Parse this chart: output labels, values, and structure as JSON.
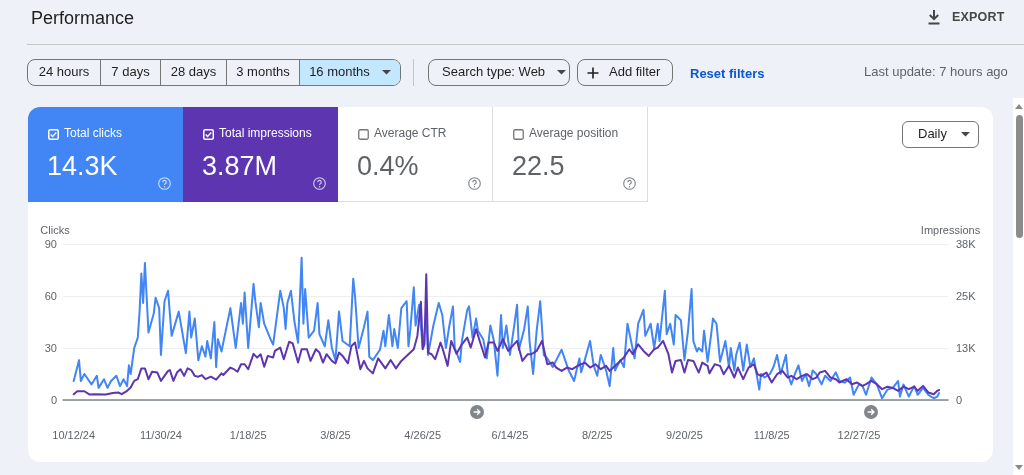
{
  "chart_data": [
    {
      "type": "other",
      "title": "Performance",
      "annotations": [
        "EXPORT",
        "24 hours",
        "7 days",
        "28 days",
        "3 months",
        "16 months",
        "Search type: Web",
        "Add filter",
        "Reset filters",
        "Last update: 7 hours ago",
        "Total clicks",
        "14.3K",
        "Total impressions",
        "3.87M",
        "Average CTR",
        "0.4%",
        "Average position",
        "22.5",
        "Daily"
      ]
    },
    {
      "type": "line",
      "ylabel": "Clicks",
      "y2label": "Impressions",
      "xlim": [
        "2024-10-06",
        "2026-02-15"
      ],
      "xticks": [
        {
          "value": "2024-10-12",
          "label": "10/12/24"
        },
        {
          "value": "2024-11-30",
          "label": "11/30/24"
        },
        {
          "value": "2025-01-18",
          "label": "1/18/25"
        },
        {
          "value": "2025-03-08",
          "label": "3/8/25"
        },
        {
          "value": "2025-04-26",
          "label": "4/26/25"
        },
        {
          "value": "2025-06-14",
          "label": "6/14/25"
        },
        {
          "value": "2025-08-02",
          "label": "8/2/25"
        },
        {
          "value": "2025-09-20",
          "label": "9/20/25"
        },
        {
          "value": "2025-11-08",
          "label": "11/8/25"
        },
        {
          "value": "2025-12-27",
          "label": "12/27/25"
        }
      ],
      "ylim": [
        0,
        90
      ],
      "yticks": [
        0,
        30,
        60,
        90
      ],
      "y2lim": [
        0,
        37500
      ],
      "y2ticks": [
        0,
        {
          "value": 12500,
          "label": "13K"
        },
        {
          "value": 25000,
          "label": "25K"
        },
        {
          "value": 37500,
          "label": "38K"
        }
      ],
      "grid": "y",
      "marker": "none",
      "series": [
        {
          "color": "#4285f4",
          "x": [
            "2024-10-12",
            "2024-10-15",
            "2024-10-16",
            "2024-10-18",
            "2024-10-22",
            "2024-10-25",
            "2024-10-26",
            "2024-10-29",
            "2024-10-31",
            "2024-11-02",
            "2024-11-05",
            "2024-11-07",
            "2024-11-09",
            "2024-11-11",
            "2024-11-12",
            "2024-11-13",
            "2024-11-15",
            "2024-11-17",
            "2024-11-18",
            "2024-11-19",
            "2024-11-20",
            "2024-11-21",
            "2024-11-23",
            "2024-11-26",
            "2024-11-27",
            "2024-11-29",
            "2024-11-30",
            "2024-12-02",
            "2024-12-04",
            "2024-12-06",
            "2024-12-10",
            "2024-12-14",
            "2024-12-16",
            "2024-12-17",
            "2024-12-19",
            "2024-12-21",
            "2024-12-23",
            "2024-12-25",
            "2024-12-26",
            "2024-12-28",
            "2024-12-30",
            "2024-12-31",
            "2025-01-01",
            "2025-01-03",
            "2025-01-08",
            "2025-01-11",
            "2025-01-14",
            "2025-01-15",
            "2025-01-16",
            "2025-01-18",
            "2025-01-21",
            "2025-01-22",
            "2025-01-24",
            "2025-01-25",
            "2025-01-27",
            "2025-01-31",
            "2025-02-01",
            "2025-02-05",
            "2025-02-07",
            "2025-02-08",
            "2025-02-09",
            "2025-02-11",
            "2025-02-13",
            "2025-02-15",
            "2025-02-17",
            "2025-02-18",
            "2025-02-19",
            "2025-02-21",
            "2025-02-24",
            "2025-02-26",
            "2025-02-27",
            "2025-03-02",
            "2025-03-04",
            "2025-03-06",
            "2025-03-08",
            "2025-03-10",
            "2025-03-12",
            "2025-03-16",
            "2025-03-18",
            "2025-03-19",
            "2025-03-21",
            "2025-03-24",
            "2025-03-26",
            "2025-03-27",
            "2025-03-29",
            "2025-04-02",
            "2025-04-04",
            "2025-04-05",
            "2025-04-07",
            "2025-04-09",
            "2025-04-10",
            "2025-04-12",
            "2025-04-14",
            "2025-04-17",
            "2025-04-18",
            "2025-04-19",
            "2025-04-21",
            "2025-04-22",
            "2025-04-24",
            "2025-04-26",
            "2025-04-28",
            "2025-04-29",
            "2025-05-02",
            "2025-05-05",
            "2025-05-07",
            "2025-05-09",
            "2025-05-11",
            "2025-05-13",
            "2025-05-14",
            "2025-05-17",
            "2025-05-18",
            "2025-05-21",
            "2025-05-22",
            "2025-05-24",
            "2025-05-26",
            "2025-05-27",
            "2025-05-30",
            "2025-06-01",
            "2025-06-03",
            "2025-06-05",
            "2025-06-07",
            "2025-06-09",
            "2025-06-10",
            "2025-06-12",
            "2025-06-14",
            "2025-06-16",
            "2025-06-18",
            "2025-06-19",
            "2025-06-22",
            "2025-06-24",
            "2025-06-25",
            "2025-06-27",
            "2025-06-29",
            "2025-07-01",
            "2025-07-03",
            "2025-07-05",
            "2025-07-08",
            "2025-07-10",
            "2025-07-13",
            "2025-07-15",
            "2025-07-17",
            "2025-07-20",
            "2025-07-23",
            "2025-07-24",
            "2025-07-26",
            "2025-07-29",
            "2025-07-31",
            "2025-08-02",
            "2025-08-04",
            "2025-08-07",
            "2025-08-09",
            "2025-08-11",
            "2025-08-12",
            "2025-08-15",
            "2025-08-17",
            "2025-08-19",
            "2025-08-21",
            "2025-08-23",
            "2025-08-25",
            "2025-08-28",
            "2025-08-29",
            "2025-09-01",
            "2025-09-03",
            "2025-09-05",
            "2025-09-06",
            "2025-09-09",
            "2025-09-10",
            "2025-09-12",
            "2025-09-14",
            "2025-09-15",
            "2025-09-18",
            "2025-09-20",
            "2025-09-22",
            "2025-09-24",
            "2025-09-25",
            "2025-09-27",
            "2025-09-28",
            "2025-09-30",
            "2025-10-01",
            "2025-10-03",
            "2025-10-05",
            "2025-10-06",
            "2025-10-08",
            "2025-10-10",
            "2025-10-13",
            "2025-10-15",
            "2025-10-16",
            "2025-10-18",
            "2025-10-19",
            "2025-10-21",
            "2025-10-23",
            "2025-10-25",
            "2025-10-27",
            "2025-10-29",
            "2025-11-01",
            "2025-11-02",
            "2025-11-04",
            "2025-11-07",
            "2025-11-09",
            "2025-11-11",
            "2025-11-13",
            "2025-11-16",
            "2025-11-17",
            "2025-11-19",
            "2025-11-21",
            "2025-11-23",
            "2025-11-25",
            "2025-11-27",
            "2025-11-29",
            "2025-12-01",
            "2025-12-03",
            "2025-12-06",
            "2025-12-08",
            "2025-12-11",
            "2025-12-14",
            "2025-12-16",
            "2025-12-19",
            "2025-12-22",
            "2025-12-24",
            "2025-12-27",
            "2025-12-29",
            "2025-12-31",
            "2026-01-03",
            "2026-01-06",
            "2026-01-09",
            "2026-01-12",
            "2026-01-15",
            "2026-01-18",
            "2026-01-19",
            "2026-01-21",
            "2026-01-24",
            "2026-01-27",
            "2026-01-29",
            "2026-02-01",
            "2026-02-04",
            "2026-02-07",
            "2026-02-09",
            "2026-02-10"
          ],
          "values": [
            11,
            23,
            11,
            15,
            9,
            14,
            7,
            12,
            7,
            11,
            14,
            8,
            12,
            8,
            20,
            15,
            30,
            36,
            51,
            73,
            56,
            79,
            39,
            50,
            59,
            53,
            26,
            57,
            63,
            37,
            51,
            27,
            51,
            36,
            47,
            23,
            31,
            25,
            34,
            24,
            45,
            19,
            35,
            28,
            53,
            30,
            56,
            44,
            62,
            30,
            67,
            57,
            42,
            56,
            44,
            34,
            32,
            63,
            53,
            41,
            56,
            63,
            45,
            33,
            82,
            44,
            64,
            36,
            40,
            56,
            38,
            31,
            46,
            30,
            23,
            51,
            34,
            31,
            70,
            60,
            30,
            42,
            51,
            25,
            23,
            29,
            40,
            31,
            49,
            31,
            41,
            30,
            53,
            57,
            31,
            40,
            65,
            43,
            55,
            30,
            49,
            26,
            43,
            56,
            49,
            30,
            43,
            54,
            30,
            22,
            34,
            52,
            54,
            36,
            47,
            40,
            35,
            24,
            43,
            34,
            14,
            49,
            30,
            43,
            26,
            40,
            55,
            29,
            41,
            54,
            34,
            15,
            40,
            57,
            26,
            24,
            19,
            23,
            29,
            23,
            17,
            11,
            24,
            16,
            23,
            34,
            20,
            14,
            26,
            17,
            8,
            30,
            17,
            23,
            19,
            44,
            34,
            24,
            44,
            52,
            37,
            44,
            30,
            44,
            34,
            63,
            38,
            44,
            32,
            49,
            46,
            23,
            40,
            64,
            34,
            28,
            30,
            28,
            40,
            22,
            38,
            47,
            44,
            22,
            34,
            19,
            30,
            17,
            26,
            33,
            17,
            32,
            19,
            24,
            6,
            15,
            13,
            15,
            19,
            26,
            15,
            26,
            15,
            9,
            15,
            20,
            11,
            15,
            8,
            17,
            15,
            9,
            14,
            11,
            16,
            11,
            10,
            13,
            3,
            9,
            8,
            3,
            13,
            9,
            1,
            6,
            7,
            11,
            2,
            9,
            2,
            8,
            3,
            7,
            3,
            1,
            2,
            4
          ]
        },
        {
          "color": "#5e35b1",
          "axis": "y2",
          "x": [
            "2024-10-12",
            "2024-10-14",
            "2024-10-18",
            "2024-10-21",
            "2024-10-24",
            "2024-10-30",
            "2024-11-03",
            "2024-11-06",
            "2024-11-08",
            "2024-11-11",
            "2024-11-13",
            "2024-11-15",
            "2024-11-17",
            "2024-11-19",
            "2024-11-21",
            "2024-11-23",
            "2024-11-25",
            "2024-11-28",
            "2024-11-30",
            "2024-12-04",
            "2024-12-05",
            "2024-12-07",
            "2024-12-09",
            "2024-12-11",
            "2024-12-13",
            "2024-12-15",
            "2024-12-17",
            "2024-12-19",
            "2024-12-21",
            "2024-12-23",
            "2024-12-25",
            "2024-12-28",
            "2024-12-31",
            "2025-01-03",
            "2025-01-04",
            "2025-01-08",
            "2025-01-10",
            "2025-01-12",
            "2025-01-14",
            "2025-01-16",
            "2025-01-18",
            "2025-01-21",
            "2025-01-23",
            "2025-01-25",
            "2025-01-27",
            "2025-01-29",
            "2025-02-01",
            "2025-02-02",
            "2025-02-05",
            "2025-02-07",
            "2025-02-10",
            "2025-02-12",
            "2025-02-15",
            "2025-02-17",
            "2025-02-20",
            "2025-02-22",
            "2025-02-25",
            "2025-02-27",
            "2025-03-01",
            "2025-03-03",
            "2025-03-06",
            "2025-03-08",
            "2025-03-10",
            "2025-03-12",
            "2025-03-15",
            "2025-03-17",
            "2025-03-19",
            "2025-03-22",
            "2025-03-24",
            "2025-03-26",
            "2025-03-29",
            "2025-04-01",
            "2025-04-05",
            "2025-04-08",
            "2025-04-11",
            "2025-04-14",
            "2025-04-18",
            "2025-04-21",
            "2025-04-23",
            "2025-04-25",
            "2025-04-26",
            "2025-04-27",
            "2025-04-28",
            "2025-04-29",
            "2025-05-01",
            "2025-05-03",
            "2025-05-06",
            "2025-05-07",
            "2025-05-10",
            "2025-05-12",
            "2025-05-15",
            "2025-05-18",
            "2025-05-21",
            "2025-05-23",
            "2025-05-26",
            "2025-05-28",
            "2025-05-31",
            "2025-06-02",
            "2025-06-05",
            "2025-06-07",
            "2025-06-10",
            "2025-06-13",
            "2025-06-18",
            "2025-06-21",
            "2025-06-24",
            "2025-06-26",
            "2025-06-29",
            "2025-07-02",
            "2025-07-05",
            "2025-07-08",
            "2025-07-10",
            "2025-07-13",
            "2025-07-16",
            "2025-07-19",
            "2025-07-22",
            "2025-07-26",
            "2025-07-29",
            "2025-08-01",
            "2025-08-04",
            "2025-08-07",
            "2025-08-09",
            "2025-08-13",
            "2025-08-17",
            "2025-08-20",
            "2025-08-22",
            "2025-08-25",
            "2025-08-28",
            "2025-08-31",
            "2025-09-03",
            "2025-09-05",
            "2025-09-08",
            "2025-09-11",
            "2025-09-13",
            "2025-09-15",
            "2025-09-18",
            "2025-09-20",
            "2025-09-22",
            "2025-09-25",
            "2025-09-28",
            "2025-09-30",
            "2025-10-03",
            "2025-10-04",
            "2025-10-07",
            "2025-10-10",
            "2025-10-12",
            "2025-10-15",
            "2025-10-18",
            "2025-10-20",
            "2025-10-23",
            "2025-10-26",
            "2025-10-29",
            "2025-10-31",
            "2025-11-02",
            "2025-11-05",
            "2025-11-08",
            "2025-11-11",
            "2025-11-14",
            "2025-11-17",
            "2025-11-19",
            "2025-11-22",
            "2025-11-25",
            "2025-11-28",
            "2025-12-01",
            "2025-12-03",
            "2025-12-05",
            "2025-12-08",
            "2025-12-11",
            "2025-12-14",
            "2025-12-16",
            "2025-12-20",
            "2025-12-23",
            "2025-12-26",
            "2025-12-29",
            "2025-12-31",
            "2026-01-03",
            "2026-01-06",
            "2026-01-09",
            "2026-01-12",
            "2026-01-15",
            "2026-01-18",
            "2026-01-21",
            "2026-01-24",
            "2026-01-27",
            "2026-01-29",
            "2026-02-01",
            "2026-02-04",
            "2026-02-07",
            "2026-02-09",
            "2026-02-10"
          ],
          "values": [
            1400,
            2100,
            2100,
            1300,
            1400,
            1300,
            1700,
            1800,
            1400,
            2200,
            3000,
            4600,
            5000,
            7600,
            7600,
            5000,
            6800,
            6600,
            4600,
            7000,
            7200,
            4600,
            6600,
            7400,
            5800,
            7600,
            7200,
            5800,
            5600,
            6000,
            5000,
            5600,
            4900,
            6400,
            6000,
            7800,
            7400,
            6800,
            8600,
            8600,
            7400,
            11100,
            10200,
            11000,
            8000,
            10600,
            10200,
            11800,
            12600,
            9800,
            14000,
            13600,
            9000,
            12200,
            12200,
            9400,
            12200,
            11400,
            9000,
            11000,
            9400,
            8800,
            11400,
            10600,
            8800,
            13000,
            13800,
            7400,
            9400,
            7600,
            6400,
            10000,
            7600,
            9600,
            7600,
            9400,
            11000,
            12200,
            15400,
            23600,
            12200,
            13500,
            30200,
            11400,
            11000,
            9800,
            13800,
            12600,
            8200,
            14200,
            11100,
            13400,
            15000,
            12600,
            17000,
            14200,
            10200,
            13800,
            13800,
            11800,
            14600,
            11800,
            14200,
            9400,
            11000,
            11000,
            11800,
            14200,
            8600,
            9000,
            7800,
            7000,
            7800,
            7400,
            8200,
            9000,
            7800,
            8600,
            7400,
            8200,
            7000,
            8600,
            10200,
            12200,
            11000,
            13400,
            11800,
            10600,
            12200,
            12600,
            14200,
            11000,
            6600,
            9400,
            9600,
            6600,
            9600,
            9400,
            6600,
            9000,
            8200,
            6400,
            8600,
            8200,
            6200,
            8200,
            5400,
            7800,
            5000,
            7800,
            8600,
            6200,
            5800,
            6600,
            4200,
            6200,
            7000,
            5400,
            5800,
            5000,
            5800,
            6200,
            5000,
            5400,
            6600,
            7000,
            5400,
            5000,
            4200,
            5000,
            3800,
            4200,
            3400,
            3800,
            4600,
            3800,
            2600,
            3200,
            2900,
            2200,
            3200,
            2600,
            3200,
            2200,
            3400,
            1800,
            1400,
            2200,
            2400
          ]
        }
      ]
    }
  ]
}
